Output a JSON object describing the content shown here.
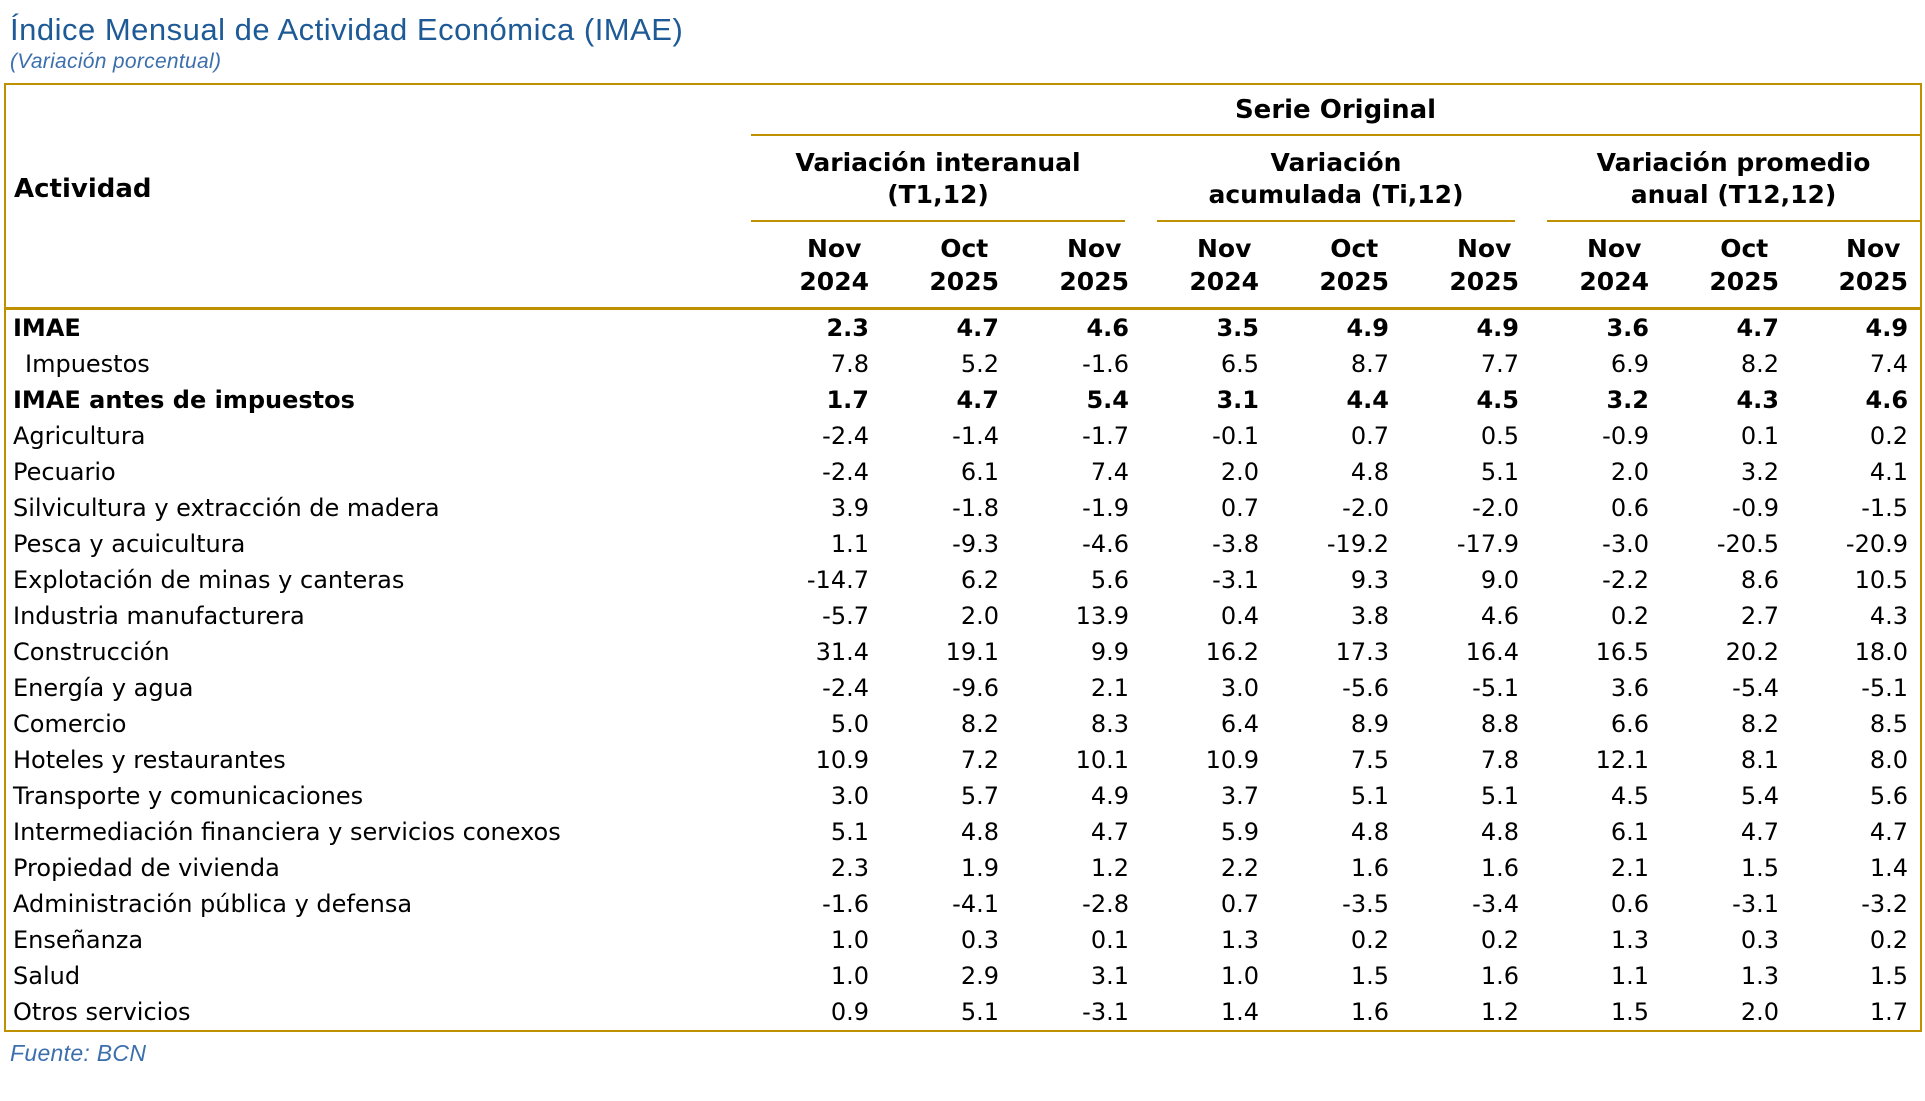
{
  "page": {
    "title": "Índice Mensual de Actividad Económica (IMAE)",
    "subtitle": "(Variación porcentual)",
    "source": "Fuente: BCN"
  },
  "colors": {
    "accent_gold": "#BF9000",
    "title_blue": "#1D5A96",
    "subtitle_blue": "#3C6FAD",
    "body_text": "#000000"
  },
  "table": {
    "activity_header": "Actividad",
    "serie_header": "Serie Original",
    "groups": [
      {
        "line1": "Variación interanual",
        "line2": "(T1,12)"
      },
      {
        "line1": "Variación",
        "line2": "acumulada (Ti,12)"
      },
      {
        "line1": "Variación promedio",
        "line2": "anual (T12,12)"
      }
    ],
    "months": [
      {
        "m": "Nov",
        "y": "2024"
      },
      {
        "m": "Oct",
        "y": "2025"
      },
      {
        "m": "Nov",
        "y": "2025"
      },
      {
        "m": "Nov",
        "y": "2024"
      },
      {
        "m": "Oct",
        "y": "2025"
      },
      {
        "m": "Nov",
        "y": "2025"
      },
      {
        "m": "Nov",
        "y": "2024"
      },
      {
        "m": "Oct",
        "y": "2025"
      },
      {
        "m": "Nov",
        "y": "2025"
      }
    ],
    "rows": [
      {
        "label": "IMAE",
        "bold": true,
        "indent": false,
        "values": [
          "2.3",
          "4.7",
          "4.6",
          "3.5",
          "4.9",
          "4.9",
          "3.6",
          "4.7",
          "4.9"
        ]
      },
      {
        "label": "Impuestos",
        "bold": false,
        "indent": true,
        "values": [
          "7.8",
          "5.2",
          "-1.6",
          "6.5",
          "8.7",
          "7.7",
          "6.9",
          "8.2",
          "7.4"
        ]
      },
      {
        "label": "IMAE antes de impuestos",
        "bold": true,
        "indent": false,
        "values": [
          "1.7",
          "4.7",
          "5.4",
          "3.1",
          "4.4",
          "4.5",
          "3.2",
          "4.3",
          "4.6"
        ]
      },
      {
        "label": "Agricultura",
        "bold": false,
        "indent": false,
        "values": [
          "-2.4",
          "-1.4",
          "-1.7",
          "-0.1",
          "0.7",
          "0.5",
          "-0.9",
          "0.1",
          "0.2"
        ]
      },
      {
        "label": "Pecuario",
        "bold": false,
        "indent": false,
        "values": [
          "-2.4",
          "6.1",
          "7.4",
          "2.0",
          "4.8",
          "5.1",
          "2.0",
          "3.2",
          "4.1"
        ]
      },
      {
        "label": "Silvicultura y extracción de madera",
        "bold": false,
        "indent": false,
        "values": [
          "3.9",
          "-1.8",
          "-1.9",
          "0.7",
          "-2.0",
          "-2.0",
          "0.6",
          "-0.9",
          "-1.5"
        ]
      },
      {
        "label": "Pesca y acuicultura",
        "bold": false,
        "indent": false,
        "values": [
          "1.1",
          "-9.3",
          "-4.6",
          "-3.8",
          "-19.2",
          "-17.9",
          "-3.0",
          "-20.5",
          "-20.9"
        ]
      },
      {
        "label": "Explotación de minas y canteras",
        "bold": false,
        "indent": false,
        "values": [
          "-14.7",
          "6.2",
          "5.6",
          "-3.1",
          "9.3",
          "9.0",
          "-2.2",
          "8.6",
          "10.5"
        ]
      },
      {
        "label": "Industria manufacturera",
        "bold": false,
        "indent": false,
        "values": [
          "-5.7",
          "2.0",
          "13.9",
          "0.4",
          "3.8",
          "4.6",
          "0.2",
          "2.7",
          "4.3"
        ]
      },
      {
        "label": "Construcción",
        "bold": false,
        "indent": false,
        "values": [
          "31.4",
          "19.1",
          "9.9",
          "16.2",
          "17.3",
          "16.4",
          "16.5",
          "20.2",
          "18.0"
        ]
      },
      {
        "label": "Energía y agua",
        "bold": false,
        "indent": false,
        "values": [
          "-2.4",
          "-9.6",
          "2.1",
          "3.0",
          "-5.6",
          "-5.1",
          "3.6",
          "-5.4",
          "-5.1"
        ]
      },
      {
        "label": "Comercio",
        "bold": false,
        "indent": false,
        "values": [
          "5.0",
          "8.2",
          "8.3",
          "6.4",
          "8.9",
          "8.8",
          "6.6",
          "8.2",
          "8.5"
        ]
      },
      {
        "label": "Hoteles y restaurantes",
        "bold": false,
        "indent": false,
        "values": [
          "10.9",
          "7.2",
          "10.1",
          "10.9",
          "7.5",
          "7.8",
          "12.1",
          "8.1",
          "8.0"
        ]
      },
      {
        "label": "Transporte y comunicaciones",
        "bold": false,
        "indent": false,
        "values": [
          "3.0",
          "5.7",
          "4.9",
          "3.7",
          "5.1",
          "5.1",
          "4.5",
          "5.4",
          "5.6"
        ]
      },
      {
        "label": "Intermediación financiera y servicios conexos",
        "bold": false,
        "indent": false,
        "values": [
          "5.1",
          "4.8",
          "4.7",
          "5.9",
          "4.8",
          "4.8",
          "6.1",
          "4.7",
          "4.7"
        ]
      },
      {
        "label": "Propiedad de vivienda",
        "bold": false,
        "indent": false,
        "values": [
          "2.3",
          "1.9",
          "1.2",
          "2.2",
          "1.6",
          "1.6",
          "2.1",
          "1.5",
          "1.4"
        ]
      },
      {
        "label": "Administración pública y defensa",
        "bold": false,
        "indent": false,
        "values": [
          "-1.6",
          "-4.1",
          "-2.8",
          "0.7",
          "-3.5",
          "-3.4",
          "0.6",
          "-3.1",
          "-3.2"
        ]
      },
      {
        "label": "Enseñanza",
        "bold": false,
        "indent": false,
        "values": [
          "1.0",
          "0.3",
          "0.1",
          "1.3",
          "0.2",
          "0.2",
          "1.3",
          "0.3",
          "0.2"
        ]
      },
      {
        "label": "Salud",
        "bold": false,
        "indent": false,
        "values": [
          "1.0",
          "2.9",
          "3.1",
          "1.0",
          "1.5",
          "1.6",
          "1.1",
          "1.3",
          "1.5"
        ]
      },
      {
        "label": "Otros servicios",
        "bold": false,
        "indent": false,
        "values": [
          "0.9",
          "5.1",
          "-3.1",
          "1.4",
          "1.6",
          "1.2",
          "1.5",
          "2.0",
          "1.7"
        ]
      }
    ]
  }
}
